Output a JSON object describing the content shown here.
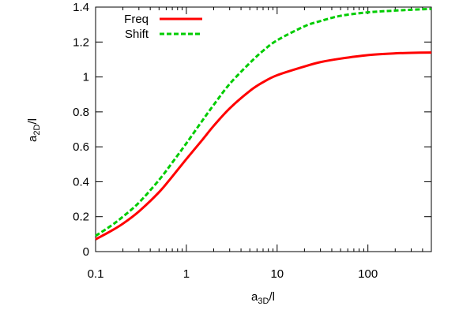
{
  "chart_data": {
    "type": "line",
    "title": "",
    "xlabel": "a3D/l",
    "ylabel": "a2D/l",
    "xscale": "log",
    "xlim": [
      0.1,
      500
    ],
    "ylim": [
      0,
      1.4
    ],
    "xticks": [
      0.1,
      1,
      10,
      100
    ],
    "xtick_labels": [
      "0.1",
      "1",
      "10",
      "100"
    ],
    "yticks": [
      0,
      0.2,
      0.4,
      0.6,
      0.8,
      1.0,
      1.2,
      1.4
    ],
    "ytick_labels": [
      "0",
      "0.2",
      "0.4",
      "0.6",
      "0.8",
      "1",
      "1.2",
      "1.4"
    ],
    "grid": false,
    "legend_position": "top-left",
    "series": [
      {
        "name": "Freq",
        "color": "#ff0000",
        "style": "solid",
        "x": [
          0.1,
          0.15,
          0.2,
          0.3,
          0.5,
          0.7,
          1,
          1.5,
          2,
          3,
          5,
          7,
          10,
          20,
          30,
          50,
          100,
          200,
          300,
          500
        ],
        "y": [
          0.07,
          0.12,
          0.16,
          0.23,
          0.34,
          0.43,
          0.53,
          0.64,
          0.72,
          0.82,
          0.92,
          0.97,
          1.01,
          1.06,
          1.085,
          1.105,
          1.125,
          1.135,
          1.138,
          1.14
        ]
      },
      {
        "name": "Shift",
        "color": "#00cc00",
        "style": "dashed",
        "x": [
          0.1,
          0.15,
          0.2,
          0.3,
          0.5,
          0.7,
          1,
          1.5,
          2,
          3,
          5,
          7,
          10,
          20,
          30,
          50,
          100,
          200,
          300,
          500
        ],
        "y": [
          0.09,
          0.15,
          0.2,
          0.28,
          0.41,
          0.51,
          0.62,
          0.75,
          0.84,
          0.96,
          1.08,
          1.15,
          1.21,
          1.29,
          1.32,
          1.35,
          1.37,
          1.38,
          1.385,
          1.39
        ]
      }
    ]
  }
}
